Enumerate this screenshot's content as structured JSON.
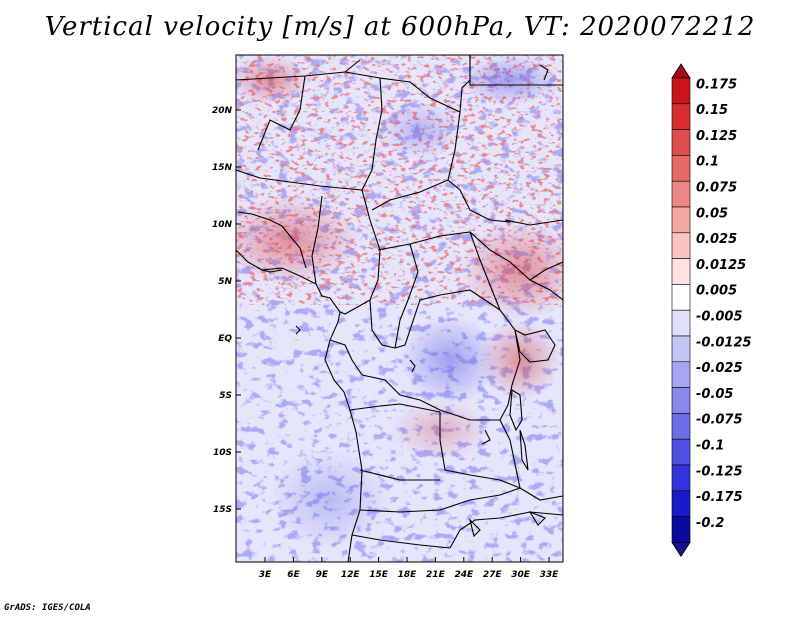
{
  "title": "Vertical velocity [m/s] at 600hPa, VT: 2020072212",
  "footer": "GrADS: IGES/COLA",
  "map": {
    "lat_labels": [
      "20N",
      "15N",
      "10N",
      "5N",
      "EQ",
      "5S",
      "10S",
      "15S"
    ],
    "lon_labels": [
      "3E",
      "6E",
      "9E",
      "12E",
      "15E",
      "18E",
      "21E",
      "24E",
      "27E",
      "30E",
      "33E"
    ]
  },
  "colorbar": {
    "levels": [
      "0.175",
      "0.15",
      "0.125",
      "0.1",
      "0.075",
      "0.05",
      "0.025",
      "0.0125",
      "0.005",
      "-0.005",
      "-0.0125",
      "-0.025",
      "-0.05",
      "-0.075",
      "-0.1",
      "-0.125",
      "-0.175",
      "-0.2"
    ],
    "colors": [
      "#c8141a",
      "#d5302f",
      "#de4d4a",
      "#e66a66",
      "#ee8783",
      "#f4a6a2",
      "#f9c4c1",
      "#fde2e0",
      "#ffffff",
      "#e0e0fb",
      "#c4c4f6",
      "#a7a7f1",
      "#8a8aec",
      "#6d6de7",
      "#5050e2",
      "#3434dc",
      "#1a1ac8",
      "#0a0aa0"
    ],
    "top_arrow_color": "#a80c12",
    "bottom_arrow_color": "#12128c"
  }
}
